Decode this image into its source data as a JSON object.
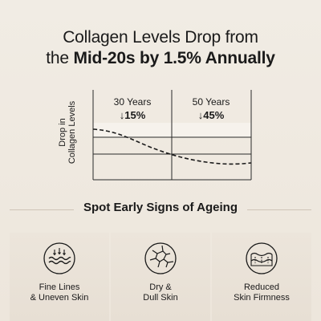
{
  "headline": {
    "line1": "Collagen Levels Drop from",
    "line2_prefix": "the ",
    "line2_bold": "Mid-20s by 1.5% Annually"
  },
  "graph": {
    "y_axis_label_line1": "Drop in",
    "y_axis_label_line2": "Collagen Levels",
    "markers": [
      {
        "label": "30 Years",
        "change": "↓15%"
      },
      {
        "label": "50 Years",
        "change": "↓45%"
      }
    ]
  },
  "section_title": "Spot Early Signs of Ageing",
  "signs": [
    {
      "icon": "fine-lines-icon",
      "line1": "Fine Lines",
      "line2": "& Uneven Skin"
    },
    {
      "icon": "dry-skin-icon",
      "line1": "Dry &",
      "line2": "Dull Skin"
    },
    {
      "icon": "firmness-icon",
      "line1": "Reduced",
      "line2": "Skin Firmness"
    }
  ],
  "colors": {
    "background": "#efe9e0",
    "text": "#1a1a1a",
    "card": "#e9e2d8",
    "divider": "#cfc4b7"
  }
}
